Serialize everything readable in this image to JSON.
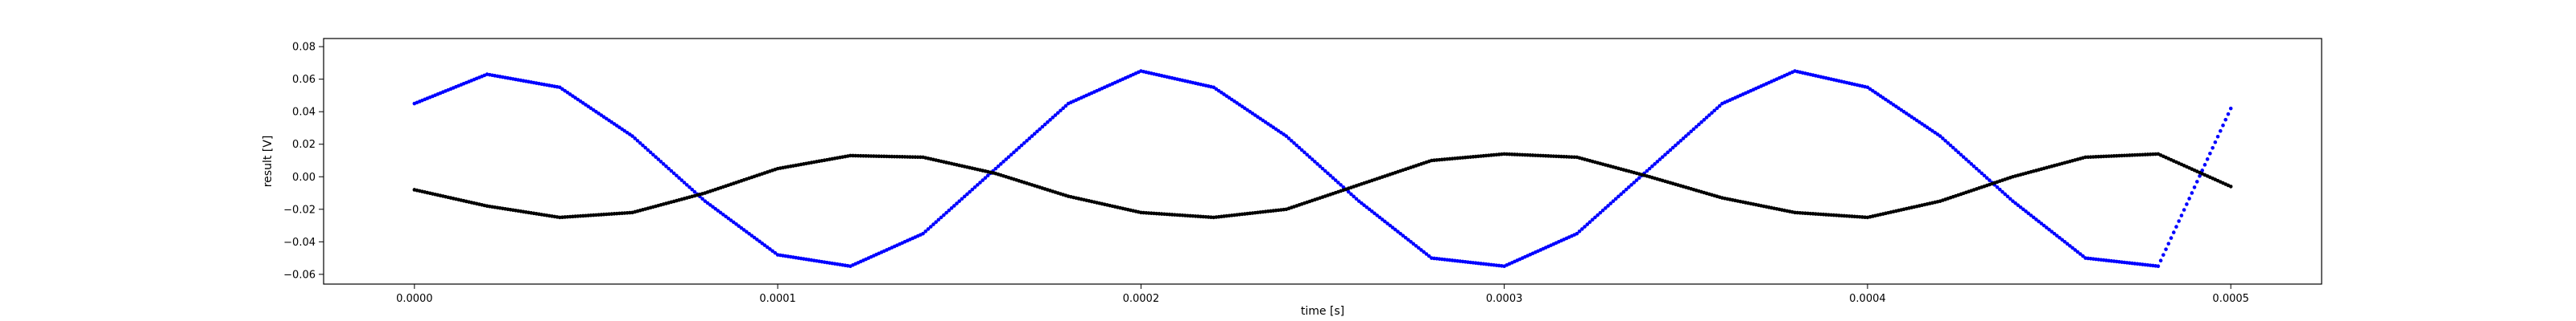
{
  "chart_data": {
    "type": "scatter",
    "title": "",
    "xlabel": "time [s]",
    "ylabel": "result [V]",
    "xlim": [
      -2.5e-05,
      0.000525
    ],
    "ylim": [
      -0.066,
      0.085
    ],
    "grid": false,
    "xticks": [
      {
        "value": 0.0,
        "label": "0.0000"
      },
      {
        "value": 0.0001,
        "label": "0.0001"
      },
      {
        "value": 0.0002,
        "label": "0.0002"
      },
      {
        "value": 0.0003,
        "label": "0.0003"
      },
      {
        "value": 0.0004,
        "label": "0.0004"
      },
      {
        "value": 0.0005,
        "label": "0.0005"
      }
    ],
    "yticks": [
      {
        "value": -0.06,
        "label": "−0.06"
      },
      {
        "value": -0.04,
        "label": "−0.04"
      },
      {
        "value": -0.02,
        "label": "−0.02"
      },
      {
        "value": 0.0,
        "label": "0.00"
      },
      {
        "value": 0.02,
        "label": "0.02"
      },
      {
        "value": 0.04,
        "label": "0.04"
      },
      {
        "value": 0.06,
        "label": "0.06"
      },
      {
        "value": 0.08,
        "label": "0.08"
      }
    ],
    "series": [
      {
        "color": "#0000ff",
        "marker": "dot",
        "x": [
          0.0,
          2e-05,
          4e-05,
          6e-05,
          8e-05,
          0.0001,
          0.00012,
          0.00014,
          0.00016,
          0.00018,
          0.0002,
          0.00022,
          0.00024,
          0.00026,
          0.00028,
          0.0003,
          0.00032,
          0.00034,
          0.00036,
          0.00038,
          0.0004,
          0.00042,
          0.00044,
          0.00046,
          0.00048,
          0.0005
        ],
        "y": [
          0.045,
          0.063,
          0.055,
          0.025,
          -0.015,
          -0.048,
          -0.055,
          -0.035,
          0.005,
          0.045,
          0.065,
          0.055,
          0.025,
          -0.015,
          -0.05,
          -0.055,
          -0.035,
          0.005,
          0.045,
          0.065,
          0.055,
          0.025,
          -0.015,
          -0.05,
          -0.055,
          0.042
        ]
      },
      {
        "color": "#000000",
        "marker": "dot",
        "x": [
          0.0,
          2e-05,
          4e-05,
          6e-05,
          8e-05,
          0.0001,
          0.00012,
          0.00014,
          0.00016,
          0.00018,
          0.0002,
          0.00022,
          0.00024,
          0.00026,
          0.00028,
          0.0003,
          0.00032,
          0.00034,
          0.00036,
          0.00038,
          0.0004,
          0.00042,
          0.00044,
          0.00046,
          0.00048,
          0.0005
        ],
        "y": [
          -0.008,
          -0.018,
          -0.025,
          -0.022,
          -0.01,
          0.005,
          0.013,
          0.012,
          0.002,
          -0.012,
          -0.022,
          -0.025,
          -0.02,
          -0.005,
          0.01,
          0.014,
          0.012,
          0.0,
          -0.013,
          -0.022,
          -0.025,
          -0.015,
          0.0,
          0.012,
          0.014,
          -0.006
        ]
      }
    ]
  }
}
